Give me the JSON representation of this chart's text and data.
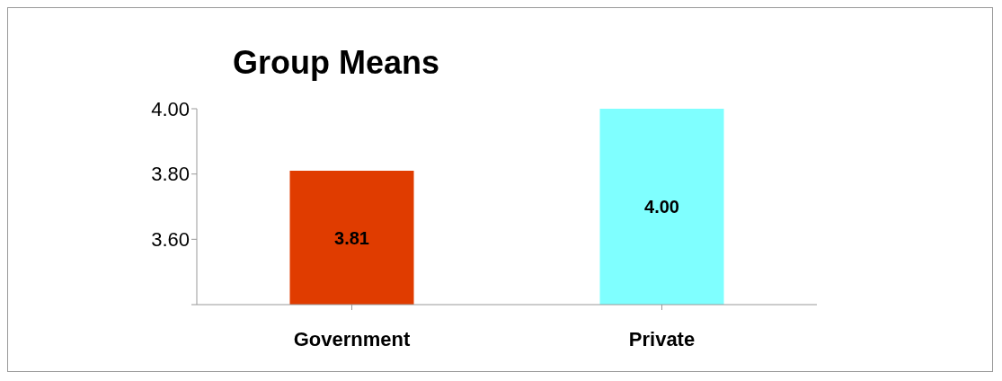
{
  "chart_data": {
    "type": "bar",
    "title": "Group Means",
    "categories": [
      "Government",
      "Private"
    ],
    "values": [
      3.81,
      4.0
    ],
    "colors": [
      "#e03c00",
      "#7fffff"
    ],
    "value_labels": [
      "3.81",
      "4.00"
    ],
    "ylim": [
      3.4,
      4.0
    ],
    "yticks": [
      {
        "value": 3.4,
        "label": null
      },
      {
        "value": 3.6,
        "label": "3.60"
      },
      {
        "value": 3.8,
        "label": "3.80"
      },
      {
        "value": 4.0,
        "label": "4.00"
      }
    ],
    "grid": false,
    "legend": false
  }
}
